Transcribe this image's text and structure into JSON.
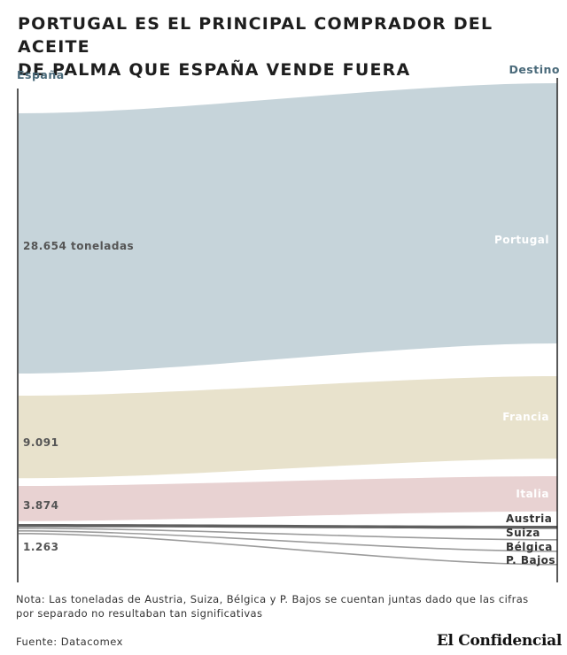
{
  "title_lines": [
    "PORTUGAL ES EL PRINCIPAL COMPRADOR DEL ACEITE",
    "DE PALMA QUE ESPAÑA VENDE FUERA"
  ],
  "note": "Nota: Las toneladas de Austria, Suiza, Bélgica y P. Bajos se cuentan juntas dado que las cifras por separado no resultaban tan significativas",
  "source": "Fuente: Datacomex",
  "logo": "El Confidencial",
  "chart_data": {
    "type": "sankey",
    "unit": "toneladas",
    "source_node": "España",
    "left_axis_label": "España",
    "right_axis_label": "Destino",
    "flows": [
      {
        "source_label": "28.654 toneladas",
        "values": [
          {
            "target": "Portugal",
            "value": 28654
          }
        ],
        "color": "#c6d4da"
      },
      {
        "source_label": "9.091",
        "values": [
          {
            "target": "Francia",
            "value": 9091
          }
        ],
        "color": "#e8e2cc"
      },
      {
        "source_label": "3.874",
        "values": [
          {
            "target": "Italia",
            "value": 3874
          }
        ],
        "color": "#e8d2d2"
      },
      {
        "source_label": "1.263",
        "values": [
          {
            "target": "Austria",
            "value": null
          },
          {
            "target": "Suiza",
            "value": null
          },
          {
            "target": "Bélgica",
            "value": null
          },
          {
            "target": "P. Bajos",
            "value": null
          }
        ],
        "grouped_value": 1263,
        "color": "#7d7d7d"
      }
    ],
    "target_labels": [
      "Portugal",
      "Francia",
      "Italia",
      "Austria",
      "Suiza",
      "Bélgica",
      "P. Bajos"
    ]
  }
}
